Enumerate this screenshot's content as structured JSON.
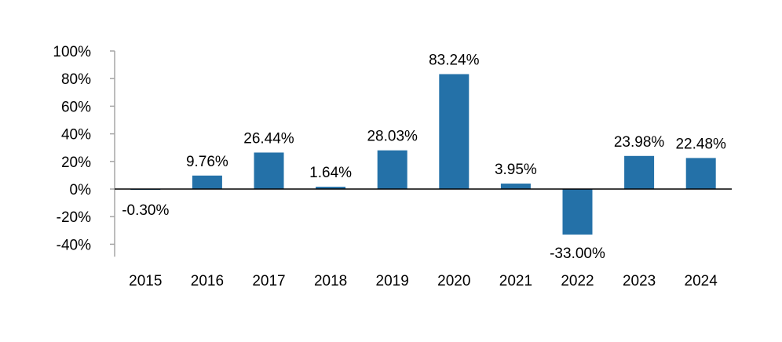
{
  "chart_data": {
    "type": "bar",
    "categories": [
      "2015",
      "2016",
      "2017",
      "2018",
      "2019",
      "2020",
      "2021",
      "2022",
      "2023",
      "2024"
    ],
    "values": [
      -0.3,
      9.76,
      26.44,
      1.64,
      28.03,
      83.24,
      3.95,
      -33.0,
      23.98,
      22.48
    ],
    "data_labels": [
      "-0.30%",
      "9.76%",
      "26.44%",
      "1.64%",
      "28.03%",
      "83.24%",
      "3.95%",
      "-33.00%",
      "23.98%",
      "22.48%"
    ],
    "yticks": [
      100,
      80,
      60,
      40,
      20,
      0,
      -20,
      -40
    ],
    "ytick_labels": [
      "100%",
      "80%",
      "60%",
      "40%",
      "20%",
      "0%",
      "-20%",
      "-40%"
    ],
    "ylim": [
      -40,
      100
    ],
    "title": "",
    "xlabel": "",
    "ylabel": "",
    "grid": false,
    "bar_color": "#2471A8",
    "axis_color": "#A6A6A6",
    "zero_line_color": "#000000"
  }
}
